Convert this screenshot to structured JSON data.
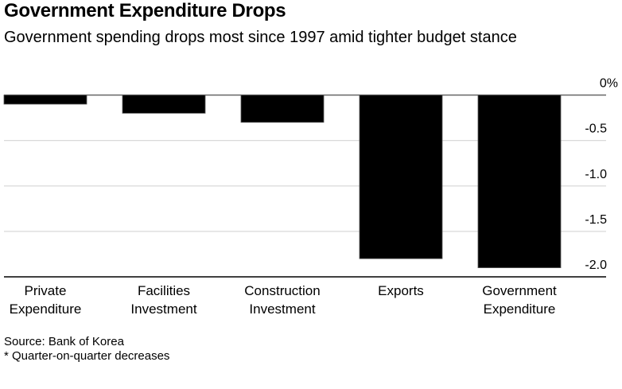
{
  "chart_data": {
    "type": "bar",
    "title": "Government Expenditure Drops",
    "subtitle": "Government spending drops most since 1997 amid tighter budget stance",
    "categories": [
      [
        "Private",
        "Expenditure"
      ],
      [
        "Facilities",
        "Investment"
      ],
      [
        "Construction",
        "Investment"
      ],
      [
        "Exports"
      ],
      [
        "Government",
        "Expenditure"
      ]
    ],
    "values": [
      -0.1,
      -0.2,
      -0.3,
      -1.8,
      -1.9
    ],
    "xlabel": "",
    "ylabel": "",
    "ylim": [
      -2.0,
      0
    ],
    "yticks": [
      0,
      -0.5,
      -1.0,
      -1.5,
      -2.0
    ],
    "ytick_labels": [
      "0%",
      "-0.5",
      "-1.0",
      "-1.5",
      "-2.0"
    ],
    "y_axis_position": "right",
    "grid": true,
    "bar_color": "#000000",
    "grid_color": "#d9d9d9",
    "source": "Source: Bank of Korea",
    "note": "* Quarter-on-quarter decreases"
  }
}
